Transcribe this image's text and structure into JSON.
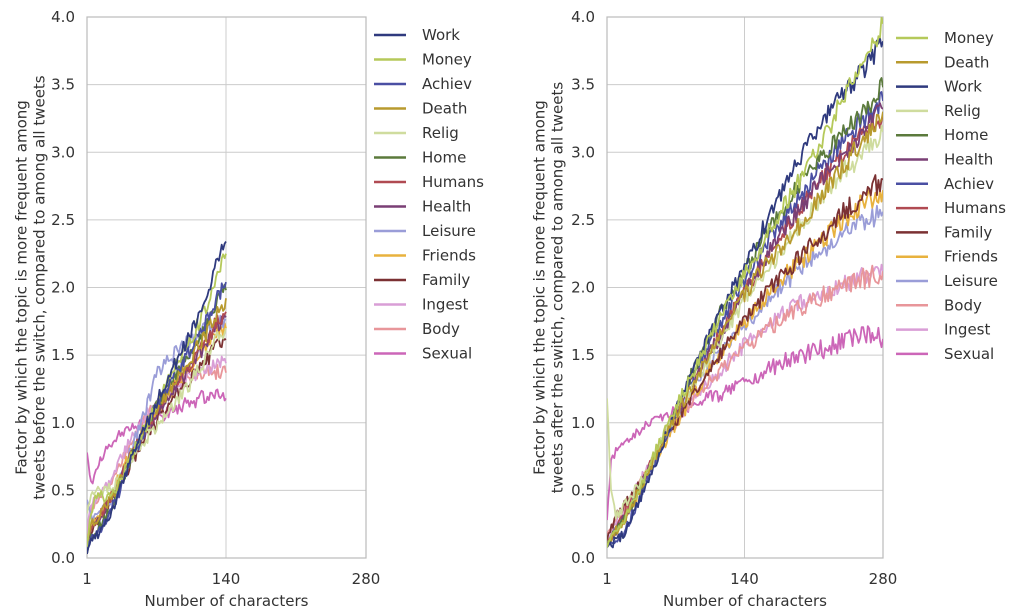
{
  "chart_data": [
    {
      "type": "line",
      "xlabel": "Number of characters",
      "ylabel_lines": [
        "Factor by which the topic is more frequent among",
        "tweets before the switch, compared to among all tweets"
      ],
      "xlim": [
        1,
        280
      ],
      "ylim": [
        0,
        4
      ],
      "xticks": [
        1,
        140,
        280
      ],
      "yticks": [
        0.0,
        0.5,
        1.0,
        1.5,
        2.0,
        2.5,
        3.0,
        3.5,
        4.0
      ],
      "grid": true,
      "legend_position": "outside-right",
      "series": [
        {
          "name": "Work",
          "color": "#2f3a7e",
          "x": [
            1,
            5,
            12,
            20,
            30,
            45,
            60,
            75,
            90,
            105,
            120,
            130,
            140
          ],
          "y": [
            0.05,
            0.13,
            0.18,
            0.25,
            0.42,
            0.72,
            0.98,
            1.22,
            1.45,
            1.66,
            1.92,
            2.15,
            2.34
          ]
        },
        {
          "name": "Money",
          "color": "#b5c95a",
          "x": [
            1,
            5,
            12,
            20,
            30,
            45,
            60,
            75,
            90,
            105,
            120,
            130,
            140
          ],
          "y": [
            0.1,
            0.35,
            0.5,
            0.42,
            0.5,
            0.75,
            0.98,
            1.2,
            1.42,
            1.62,
            1.85,
            2.05,
            2.25
          ]
        },
        {
          "name": "Achiev",
          "color": "#4a4fa3",
          "x": [
            1,
            5,
            12,
            20,
            30,
            45,
            60,
            75,
            90,
            105,
            120,
            130,
            140
          ],
          "y": [
            0.08,
            0.15,
            0.2,
            0.27,
            0.43,
            0.72,
            0.97,
            1.18,
            1.38,
            1.55,
            1.75,
            1.92,
            2.04
          ]
        },
        {
          "name": "Death",
          "color": "#b89a2e",
          "x": [
            1,
            5,
            12,
            20,
            30,
            45,
            60,
            75,
            90,
            105,
            120,
            130,
            140
          ],
          "y": [
            0.1,
            0.25,
            0.3,
            0.38,
            0.5,
            0.75,
            0.96,
            1.15,
            1.32,
            1.48,
            1.66,
            1.8,
            1.92
          ]
        },
        {
          "name": "Relig",
          "color": "#cfdc9e",
          "x": [
            1,
            5,
            12,
            20,
            30,
            45,
            60,
            75,
            90,
            105,
            120,
            130,
            140
          ],
          "y": [
            0.35,
            0.45,
            0.52,
            0.5,
            0.55,
            0.72,
            0.88,
            1.02,
            1.15,
            1.3,
            1.48,
            1.62,
            1.7
          ]
        },
        {
          "name": "Home",
          "color": "#5b7a3c",
          "x": [
            1,
            5,
            12,
            20,
            30,
            45,
            60,
            75,
            90,
            105,
            120,
            130,
            140
          ],
          "y": [
            0.05,
            0.16,
            0.22,
            0.3,
            0.46,
            0.74,
            0.98,
            1.18,
            1.36,
            1.52,
            1.72,
            1.88,
            1.98
          ]
        },
        {
          "name": "Humans",
          "color": "#b04a52",
          "x": [
            1,
            5,
            12,
            20,
            30,
            45,
            60,
            75,
            90,
            105,
            120,
            130,
            140
          ],
          "y": [
            0.1,
            0.22,
            0.3,
            0.38,
            0.52,
            0.76,
            0.96,
            1.14,
            1.3,
            1.44,
            1.6,
            1.74,
            1.82
          ]
        },
        {
          "name": "Health",
          "color": "#7a3f75",
          "x": [
            1,
            5,
            12,
            20,
            30,
            45,
            60,
            75,
            90,
            105,
            120,
            130,
            140
          ],
          "y": [
            0.1,
            0.22,
            0.28,
            0.36,
            0.5,
            0.75,
            0.95,
            1.12,
            1.28,
            1.42,
            1.58,
            1.7,
            1.78
          ]
        },
        {
          "name": "Leisure",
          "color": "#9a9dd8",
          "x": [
            1,
            5,
            12,
            20,
            30,
            45,
            60,
            70,
            75,
            90,
            105,
            120,
            130,
            140
          ],
          "y": [
            0.45,
            0.3,
            0.3,
            0.38,
            0.5,
            0.8,
            1.1,
            1.35,
            1.4,
            1.52,
            1.62,
            1.7,
            1.74,
            1.76
          ]
        },
        {
          "name": "Friends",
          "color": "#e8b23e",
          "x": [
            1,
            5,
            12,
            20,
            30,
            45,
            60,
            75,
            90,
            105,
            120,
            130,
            140
          ],
          "y": [
            0.1,
            0.25,
            0.32,
            0.4,
            0.55,
            0.78,
            0.98,
            1.14,
            1.28,
            1.42,
            1.56,
            1.66,
            1.7
          ]
        },
        {
          "name": "Family",
          "color": "#7b3133",
          "x": [
            1,
            5,
            12,
            20,
            30,
            45,
            60,
            75,
            90,
            105,
            120,
            130,
            140
          ],
          "y": [
            0.05,
            0.2,
            0.28,
            0.35,
            0.48,
            0.7,
            0.9,
            1.06,
            1.2,
            1.34,
            1.46,
            1.56,
            1.62
          ]
        },
        {
          "name": "Ingest",
          "color": "#d99ed6",
          "x": [
            1,
            5,
            12,
            20,
            30,
            45,
            60,
            75,
            90,
            105,
            120,
            130,
            140
          ],
          "y": [
            0.2,
            0.4,
            0.45,
            0.52,
            0.66,
            0.88,
            1.05,
            1.18,
            1.28,
            1.34,
            1.4,
            1.42,
            1.44
          ]
        },
        {
          "name": "Body",
          "color": "#e8969a",
          "x": [
            1,
            5,
            12,
            20,
            30,
            45,
            60,
            75,
            90,
            105,
            120,
            130,
            140
          ],
          "y": [
            0.15,
            0.38,
            0.42,
            0.5,
            0.64,
            0.86,
            1.04,
            1.18,
            1.28,
            1.34,
            1.38,
            1.38,
            1.37
          ]
        },
        {
          "name": "Sexual",
          "color": "#cc66b8",
          "x": [
            1,
            5,
            10,
            20,
            30,
            45,
            60,
            75,
            90,
            105,
            120,
            130,
            140
          ],
          "y": [
            0.8,
            0.55,
            0.65,
            0.8,
            0.9,
            0.95,
            1.0,
            1.05,
            1.1,
            1.15,
            1.2,
            1.2,
            1.18
          ]
        }
      ]
    },
    {
      "type": "line",
      "xlabel": "Number of characters",
      "ylabel_lines": [
        "Factor by which the topic is more frequent among",
        "tweets after the switch, compared to among all tweets"
      ],
      "xlim": [
        1,
        280
      ],
      "ylim": [
        0,
        4
      ],
      "xticks": [
        1,
        140,
        280
      ],
      "yticks": [
        0.0,
        0.5,
        1.0,
        1.5,
        2.0,
        2.5,
        3.0,
        3.5,
        4.0
      ],
      "grid": true,
      "legend_position": "outside-right",
      "series": [
        {
          "name": "Money",
          "color": "#b5c95a",
          "x": [
            1,
            10,
            20,
            40,
            60,
            80,
            100,
            120,
            140,
            160,
            180,
            200,
            220,
            240,
            260,
            280
          ],
          "y": [
            0.1,
            0.18,
            0.3,
            0.62,
            0.95,
            1.25,
            1.55,
            1.85,
            2.1,
            2.35,
            2.6,
            2.85,
            3.1,
            3.4,
            3.65,
            3.95
          ]
        },
        {
          "name": "Death",
          "color": "#b89a2e",
          "x": [
            1,
            10,
            20,
            40,
            60,
            80,
            100,
            120,
            140,
            160,
            180,
            200,
            220,
            240,
            260,
            280
          ],
          "y": [
            0.1,
            0.2,
            0.3,
            0.6,
            0.9,
            1.18,
            1.44,
            1.7,
            1.95,
            2.15,
            2.3,
            2.5,
            2.7,
            2.9,
            3.1,
            3.3
          ]
        },
        {
          "name": "Work",
          "color": "#2f3a7e",
          "x": [
            1,
            10,
            20,
            40,
            60,
            80,
            100,
            120,
            140,
            160,
            180,
            200,
            220,
            240,
            260,
            280
          ],
          "y": [
            0.1,
            0.12,
            0.2,
            0.52,
            0.9,
            1.25,
            1.58,
            1.88,
            2.15,
            2.45,
            2.75,
            3.0,
            3.25,
            3.45,
            3.6,
            3.82
          ]
        },
        {
          "name": "Relig",
          "color": "#cfdc9e",
          "x": [
            1,
            5,
            10,
            20,
            40,
            60,
            80,
            100,
            120,
            140,
            160,
            180,
            200,
            220,
            240,
            260,
            280
          ],
          "y": [
            1.2,
            0.5,
            0.3,
            0.4,
            0.62,
            0.92,
            1.18,
            1.42,
            1.66,
            1.9,
            2.1,
            2.3,
            2.5,
            2.68,
            2.85,
            3.0,
            3.15
          ]
        },
        {
          "name": "Home",
          "color": "#5b7a3c",
          "x": [
            1,
            10,
            20,
            40,
            60,
            80,
            100,
            120,
            140,
            160,
            180,
            200,
            220,
            240,
            260,
            280
          ],
          "y": [
            0.1,
            0.2,
            0.3,
            0.6,
            0.92,
            1.25,
            1.58,
            1.88,
            2.12,
            2.38,
            2.6,
            2.8,
            3.0,
            3.15,
            3.3,
            3.48
          ]
        },
        {
          "name": "Health",
          "color": "#7a3f75",
          "x": [
            1,
            10,
            20,
            40,
            60,
            80,
            100,
            120,
            140,
            160,
            180,
            200,
            220,
            240,
            260,
            280
          ],
          "y": [
            0.1,
            0.2,
            0.32,
            0.6,
            0.9,
            1.18,
            1.45,
            1.7,
            1.95,
            2.2,
            2.42,
            2.62,
            2.82,
            3.0,
            3.15,
            3.32
          ]
        },
        {
          "name": "Achiev",
          "color": "#4a4fa3",
          "x": [
            1,
            10,
            20,
            40,
            60,
            80,
            100,
            120,
            140,
            160,
            180,
            200,
            220,
            240,
            260,
            280
          ],
          "y": [
            0.1,
            0.14,
            0.22,
            0.55,
            0.9,
            1.22,
            1.52,
            1.8,
            2.05,
            2.3,
            2.52,
            2.72,
            2.92,
            3.1,
            3.25,
            3.38
          ]
        },
        {
          "name": "Humans",
          "color": "#b04a52",
          "x": [
            1,
            10,
            20,
            40,
            60,
            80,
            100,
            120,
            140,
            160,
            180,
            200,
            220,
            240,
            260,
            280
          ],
          "y": [
            0.1,
            0.22,
            0.35,
            0.62,
            0.92,
            1.2,
            1.46,
            1.72,
            1.96,
            2.2,
            2.42,
            2.62,
            2.82,
            3.0,
            3.15,
            3.28
          ]
        },
        {
          "name": "Family",
          "color": "#7b3133",
          "x": [
            1,
            10,
            20,
            40,
            60,
            80,
            100,
            120,
            140,
            160,
            180,
            200,
            220,
            240,
            260,
            280
          ],
          "y": [
            0.15,
            0.3,
            0.4,
            0.62,
            0.88,
            1.12,
            1.35,
            1.56,
            1.76,
            1.94,
            2.1,
            2.25,
            2.4,
            2.55,
            2.68,
            2.8
          ]
        },
        {
          "name": "Friends",
          "color": "#e8b23e",
          "x": [
            1,
            10,
            20,
            40,
            60,
            80,
            100,
            120,
            140,
            160,
            180,
            200,
            220,
            240,
            260,
            280
          ],
          "y": [
            0.1,
            0.2,
            0.3,
            0.58,
            0.86,
            1.1,
            1.34,
            1.54,
            1.74,
            1.92,
            2.08,
            2.22,
            2.36,
            2.5,
            2.62,
            2.72
          ]
        },
        {
          "name": "Leisure",
          "color": "#9a9dd8",
          "x": [
            1,
            10,
            20,
            40,
            60,
            80,
            100,
            120,
            140,
            160,
            180,
            200,
            220,
            240,
            260,
            280
          ],
          "y": [
            0.1,
            0.22,
            0.32,
            0.6,
            0.9,
            1.16,
            1.38,
            1.56,
            1.72,
            1.88,
            2.02,
            2.16,
            2.28,
            2.4,
            2.5,
            2.56
          ]
        },
        {
          "name": "Body",
          "color": "#e8969a",
          "x": [
            1,
            10,
            20,
            40,
            60,
            80,
            100,
            120,
            140,
            160,
            180,
            200,
            220,
            240,
            260,
            280
          ],
          "y": [
            0.2,
            0.28,
            0.38,
            0.62,
            0.88,
            1.1,
            1.28,
            1.42,
            1.55,
            1.68,
            1.78,
            1.86,
            1.94,
            2.0,
            2.06,
            2.12
          ]
        },
        {
          "name": "Ingest",
          "color": "#d99ed6",
          "x": [
            1,
            10,
            20,
            40,
            60,
            80,
            100,
            120,
            140,
            160,
            180,
            200,
            220,
            240,
            260,
            280
          ],
          "y": [
            0.1,
            0.25,
            0.38,
            0.65,
            0.9,
            1.1,
            1.28,
            1.42,
            1.58,
            1.72,
            1.82,
            1.9,
            1.96,
            2.02,
            2.08,
            2.12
          ]
        },
        {
          "name": "Sexual",
          "color": "#cc66b8",
          "x": [
            1,
            5,
            10,
            20,
            40,
            60,
            80,
            100,
            120,
            140,
            160,
            180,
            200,
            220,
            240,
            260,
            280
          ],
          "y": [
            0.3,
            0.7,
            0.8,
            0.88,
            0.98,
            1.05,
            1.12,
            1.18,
            1.22,
            1.28,
            1.38,
            1.45,
            1.5,
            1.55,
            1.6,
            1.66,
            1.62
          ]
        }
      ]
    }
  ]
}
